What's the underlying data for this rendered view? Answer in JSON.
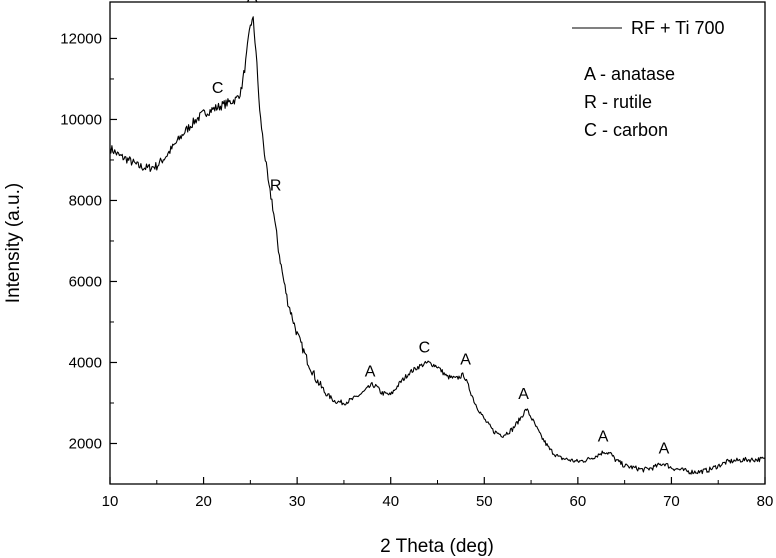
{
  "chart_data": {
    "type": "line",
    "title": "",
    "xlabel": "2 Theta (deg)",
    "ylabel": "Intensity (a.u.)",
    "xlim": [
      10,
      80
    ],
    "ylim": [
      1000,
      12900
    ],
    "x_ticks": [
      10,
      20,
      30,
      40,
      50,
      60,
      70,
      80
    ],
    "y_ticks": [
      2000,
      4000,
      6000,
      8000,
      10000,
      12000
    ],
    "grid": false,
    "legend_position": "top-right",
    "line_color": "#000000",
    "series": [
      {
        "name": "RF + Ti 700",
        "x": [
          10,
          11,
          12,
          13,
          14,
          15,
          16,
          17,
          18,
          19,
          20,
          21,
          22,
          23,
          23.5,
          24,
          24.5,
          25,
          25.3,
          25.6,
          26,
          26.5,
          27,
          27.3,
          27.6,
          28,
          28.5,
          29,
          30,
          31,
          32,
          33,
          34,
          35,
          36,
          37,
          38,
          38.5,
          39,
          40,
          41,
          42,
          43,
          44,
          45,
          46,
          47,
          47.8,
          48.5,
          49,
          50,
          51,
          52,
          53,
          53.8,
          54.5,
          55,
          56,
          57,
          58,
          59,
          60,
          61,
          62,
          62.8,
          63.5,
          64,
          65,
          66,
          67,
          68,
          69,
          69.3,
          70,
          71,
          72,
          73,
          74,
          75,
          76,
          77,
          78,
          79,
          80
        ],
        "y": [
          9300,
          9100,
          9000,
          8850,
          8800,
          8850,
          9100,
          9400,
          9700,
          9950,
          10150,
          10250,
          10350,
          10450,
          10500,
          10700,
          11400,
          12350,
          12450,
          11700,
          10200,
          9200,
          8300,
          8000,
          7500,
          6800,
          6100,
          5500,
          4700,
          4100,
          3600,
          3250,
          3050,
          3000,
          3100,
          3250,
          3450,
          3400,
          3250,
          3200,
          3500,
          3750,
          3900,
          4000,
          3900,
          3650,
          3600,
          3700,
          3300,
          3000,
          2600,
          2300,
          2200,
          2350,
          2600,
          2850,
          2650,
          2200,
          1850,
          1650,
          1600,
          1550,
          1600,
          1700,
          1800,
          1750,
          1600,
          1450,
          1400,
          1350,
          1400,
          1500,
          1500,
          1400,
          1350,
          1300,
          1300,
          1350,
          1450,
          1550,
          1580,
          1600,
          1600,
          1620
        ]
      }
    ],
    "legend_notes": [
      "A - anatase",
      "R - rutile",
      "C - carbon"
    ],
    "annotations": [
      {
        "text": "C",
        "x": 21.5,
        "y": 10650
      },
      {
        "text": "A",
        "x": 25.2,
        "y": 12900
      },
      {
        "text": "R",
        "x": 27.7,
        "y": 8250
      },
      {
        "text": "A",
        "x": 37.8,
        "y": 3650
      },
      {
        "text": "C",
        "x": 43.6,
        "y": 4250
      },
      {
        "text": "A",
        "x": 48.0,
        "y": 3950
      },
      {
        "text": "A",
        "x": 54.2,
        "y": 3100
      },
      {
        "text": "A",
        "x": 62.7,
        "y": 2050
      },
      {
        "text": "A",
        "x": 69.2,
        "y": 1750
      }
    ]
  }
}
